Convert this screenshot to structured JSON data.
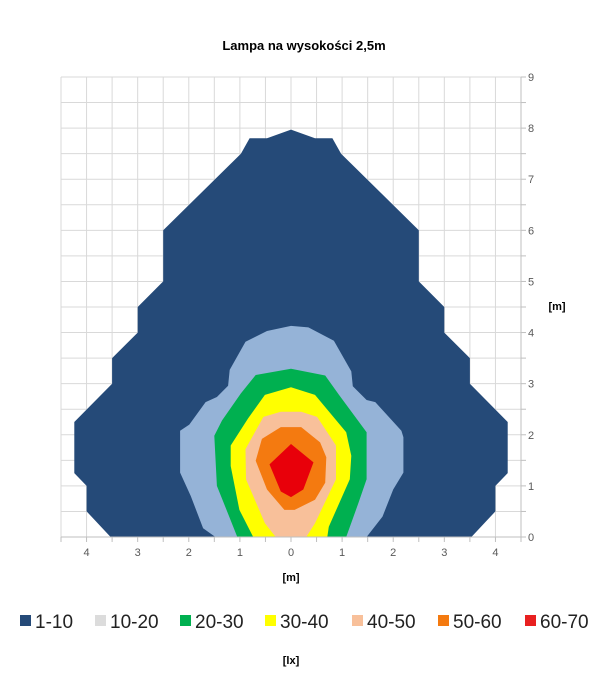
{
  "chart_data": {
    "type": "contour",
    "title": "Lampa na wysokości 2,5m",
    "xlabel": "[m]",
    "ylabel": "[m]",
    "legend_title": "[lx]",
    "legend_position": "bottom",
    "grid": true,
    "xlim": [
      -4.5,
      4.5
    ],
    "ylim": [
      0,
      9
    ],
    "x_tick_values": [
      -4,
      -3,
      -2,
      -1,
      0,
      1,
      2,
      3,
      4
    ],
    "x_tick_labels": [
      "4",
      "3",
      "2",
      "1",
      "0",
      "1",
      "2",
      "3",
      "4"
    ],
    "y_tick_labels": [
      "0",
      "1",
      "2",
      "3",
      "4",
      "5",
      "6",
      "7",
      "8",
      "9"
    ],
    "series": [
      {
        "name": "1-10",
        "color": "#254a78",
        "legend_color": "#254a78",
        "polygon": [
          [
            -3.53,
            0
          ],
          [
            -4.0,
            0.5
          ],
          [
            -4.0,
            1.0
          ],
          [
            -4.24,
            1.25
          ],
          [
            -4.24,
            2.25
          ],
          [
            -3.5,
            3.0
          ],
          [
            -3.5,
            3.5
          ],
          [
            -3.0,
            4.0
          ],
          [
            -3.0,
            4.5
          ],
          [
            -2.5,
            5.0
          ],
          [
            -2.5,
            6.0
          ],
          [
            -0.98,
            7.5
          ],
          [
            -0.81,
            7.8
          ],
          [
            -0.47,
            7.8
          ],
          [
            0,
            7.97
          ],
          [
            0.47,
            7.8
          ],
          [
            0.81,
            7.8
          ],
          [
            0.98,
            7.5
          ],
          [
            2.5,
            6.0
          ],
          [
            2.5,
            5.0
          ],
          [
            3.0,
            4.5
          ],
          [
            3.0,
            4.0
          ],
          [
            3.5,
            3.5
          ],
          [
            3.5,
            3.0
          ],
          [
            4.24,
            2.25
          ],
          [
            4.24,
            1.25
          ],
          [
            4.0,
            1.0
          ],
          [
            4.0,
            0.5
          ],
          [
            3.53,
            0
          ]
        ]
      },
      {
        "name": "10-20",
        "color": "#95b3d7",
        "legend_color": "#dcdcdc",
        "polygon": [
          [
            -1.48,
            0
          ],
          [
            -1.72,
            0.17
          ],
          [
            -1.96,
            0.8
          ],
          [
            -2.17,
            1.26
          ],
          [
            -2.17,
            2.08
          ],
          [
            -1.99,
            2.2
          ],
          [
            -1.67,
            2.64
          ],
          [
            -1.45,
            2.74
          ],
          [
            -1.23,
            2.96
          ],
          [
            -1.2,
            3.27
          ],
          [
            -0.89,
            3.82
          ],
          [
            -0.47,
            4.03
          ],
          [
            0,
            4.13
          ],
          [
            0.34,
            4.1
          ],
          [
            0.84,
            3.84
          ],
          [
            1.18,
            3.24
          ],
          [
            1.21,
            2.95
          ],
          [
            1.48,
            2.68
          ],
          [
            1.65,
            2.64
          ],
          [
            2.16,
            2.08
          ],
          [
            2.2,
            1.95
          ],
          [
            2.2,
            1.26
          ],
          [
            2.0,
            0.93
          ],
          [
            1.79,
            0.4
          ],
          [
            1.48,
            0
          ]
        ]
      },
      {
        "name": "20-30",
        "color": "#00b050",
        "legend_color": "#00b050",
        "polygon": [
          [
            -1.05,
            0
          ],
          [
            -1.21,
            0.4
          ],
          [
            -1.45,
            1.0
          ],
          [
            -1.5,
            1.98
          ],
          [
            -1.35,
            2.28
          ],
          [
            -0.98,
            2.81
          ],
          [
            -0.69,
            3.17
          ],
          [
            0,
            3.29
          ],
          [
            0.67,
            3.16
          ],
          [
            0.94,
            2.78
          ],
          [
            1.48,
            2.05
          ],
          [
            1.48,
            1.13
          ],
          [
            1.32,
            0.67
          ],
          [
            1.08,
            0
          ]
        ]
      },
      {
        "name": "30-40",
        "color": "#ffff00",
        "legend_color": "#ffff00",
        "polygon": [
          [
            -0.74,
            0
          ],
          [
            -1.01,
            0.53
          ],
          [
            -1.18,
            1.39
          ],
          [
            -1.18,
            1.79
          ],
          [
            -0.84,
            2.32
          ],
          [
            -0.51,
            2.78
          ],
          [
            0,
            2.93
          ],
          [
            0.47,
            2.78
          ],
          [
            1.08,
            2.05
          ],
          [
            1.18,
            1.59
          ],
          [
            1.15,
            1.13
          ],
          [
            0.74,
            0.2
          ],
          [
            0.71,
            0
          ]
        ]
      },
      {
        "name": "40-50",
        "color": "#f8c09a",
        "legend_color": "#f8c09a",
        "polygon": [
          [
            -0.3,
            0
          ],
          [
            -0.51,
            0.27
          ],
          [
            -0.88,
            1.13
          ],
          [
            -0.89,
            1.72
          ],
          [
            -0.54,
            2.35
          ],
          [
            -0.2,
            2.45
          ],
          [
            0.2,
            2.45
          ],
          [
            0.51,
            2.35
          ],
          [
            0.88,
            1.79
          ],
          [
            0.88,
            1.13
          ],
          [
            0.47,
            0.27
          ],
          [
            0.3,
            0
          ]
        ]
      },
      {
        "name": "50-60",
        "color": "#f47a10",
        "legend_color": "#f47a10",
        "polygon": [
          [
            -0.69,
            1.49
          ],
          [
            -0.57,
            1.92
          ],
          [
            -0.2,
            2.15
          ],
          [
            0.2,
            2.15
          ],
          [
            0.57,
            1.85
          ],
          [
            0.69,
            1.56
          ],
          [
            0.67,
            1.06
          ],
          [
            0.47,
            0.73
          ],
          [
            0.07,
            0.53
          ],
          [
            -0.13,
            0.53
          ],
          [
            -0.47,
            0.93
          ]
        ]
      },
      {
        "name": "60-70",
        "color": "#e8000a",
        "legend_color": "#e82020",
        "polygon": [
          [
            -0.42,
            1.42
          ],
          [
            0,
            1.82
          ],
          [
            0.44,
            1.46
          ],
          [
            0.24,
            0.93
          ],
          [
            0,
            0.78
          ],
          [
            -0.2,
            0.89
          ]
        ]
      }
    ]
  }
}
